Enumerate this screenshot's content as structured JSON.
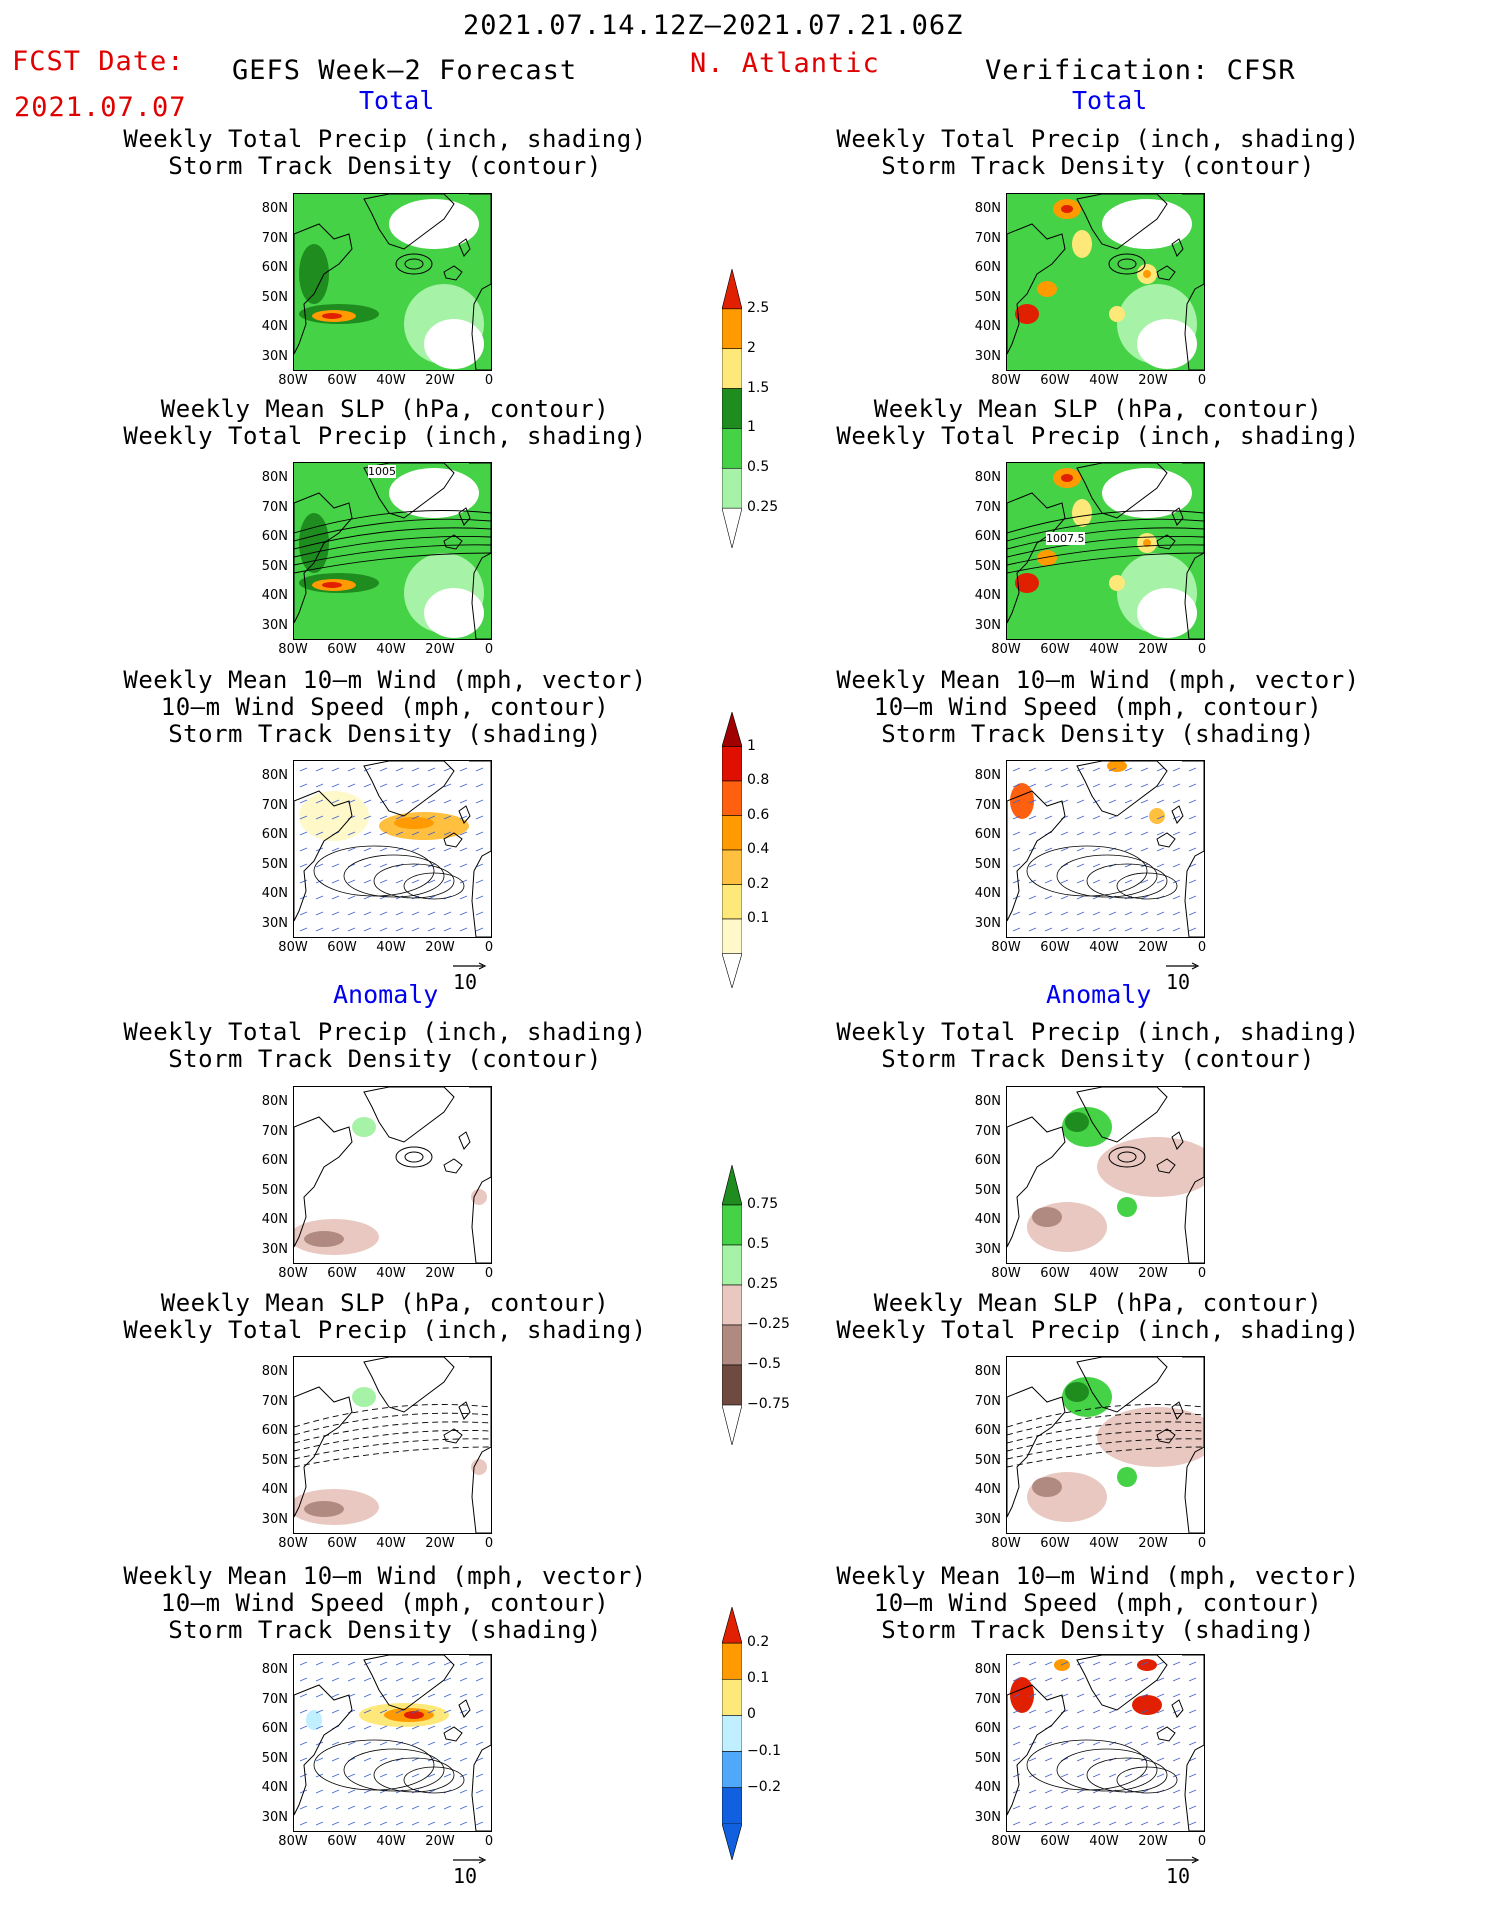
{
  "header": {
    "period": "2021.07.14.12Z–2021.07.21.06Z",
    "fcst_label": "FCST Date:",
    "fcst_date": "2021.07.07",
    "left_title": "GEFS Week–2 Forecast",
    "region": "N. Atlantic",
    "right_title": "Verification: CFSR"
  },
  "sections": {
    "total": "Total",
    "anomaly": "Anomaly"
  },
  "panels": {
    "precip_track": [
      "Weekly Total Precip (inch, shading)",
      "Storm Track Density (contour)"
    ],
    "slp_precip": [
      "Weekly Mean SLP (hPa, contour)",
      "Weekly Total Precip (inch, shading)"
    ],
    "wind_track": [
      "Weekly Mean 10–m Wind (mph, vector)",
      "10–m Wind Speed (mph, contour)",
      "Storm Track Density (shading)"
    ]
  },
  "axes": {
    "lat_labels": [
      "80N",
      "70N",
      "60N",
      "50N",
      "40N",
      "30N"
    ],
    "lon_labels": [
      "80W",
      "60W",
      "40W",
      "20W",
      "0"
    ]
  },
  "contour_labels": {
    "forecast_slp": "1005",
    "verif_slp": "1007.5"
  },
  "vector_reference": "10",
  "colorbars": {
    "precip_total": {
      "labels": [
        "2.5",
        "2",
        "1.5",
        "1",
        "0.5",
        "0.25"
      ],
      "colors": [
        "#e02000",
        "#ff9a00",
        "#ffe87a",
        "#1e8c1e",
        "#46d246",
        "#a6f2a6"
      ]
    },
    "track_total": {
      "labels": [
        "1",
        "0.8",
        "0.6",
        "0.4",
        "0.2",
        "0.1"
      ],
      "colors": [
        "#a00000",
        "#e01000",
        "#ff6010",
        "#ff9a00",
        "#ffc040",
        "#ffe87a",
        "#fff8c8"
      ]
    },
    "precip_anom": {
      "labels": [
        "0.75",
        "0.5",
        "0.25",
        "−0.25",
        "−0.5",
        "−0.75"
      ],
      "colors": [
        "#1e8c1e",
        "#46d246",
        "#a6f2a6",
        "#e8c8c0",
        "#b08a80",
        "#6e4a40"
      ]
    },
    "track_anom": {
      "labels": [
        "0.2",
        "0.1",
        "0",
        "−0.1",
        "−0.2"
      ],
      "colors": [
        "#e02000",
        "#ff9a00",
        "#ffe87a",
        "#c0f0ff",
        "#50a8f8",
        "#1060e0"
      ]
    }
  }
}
